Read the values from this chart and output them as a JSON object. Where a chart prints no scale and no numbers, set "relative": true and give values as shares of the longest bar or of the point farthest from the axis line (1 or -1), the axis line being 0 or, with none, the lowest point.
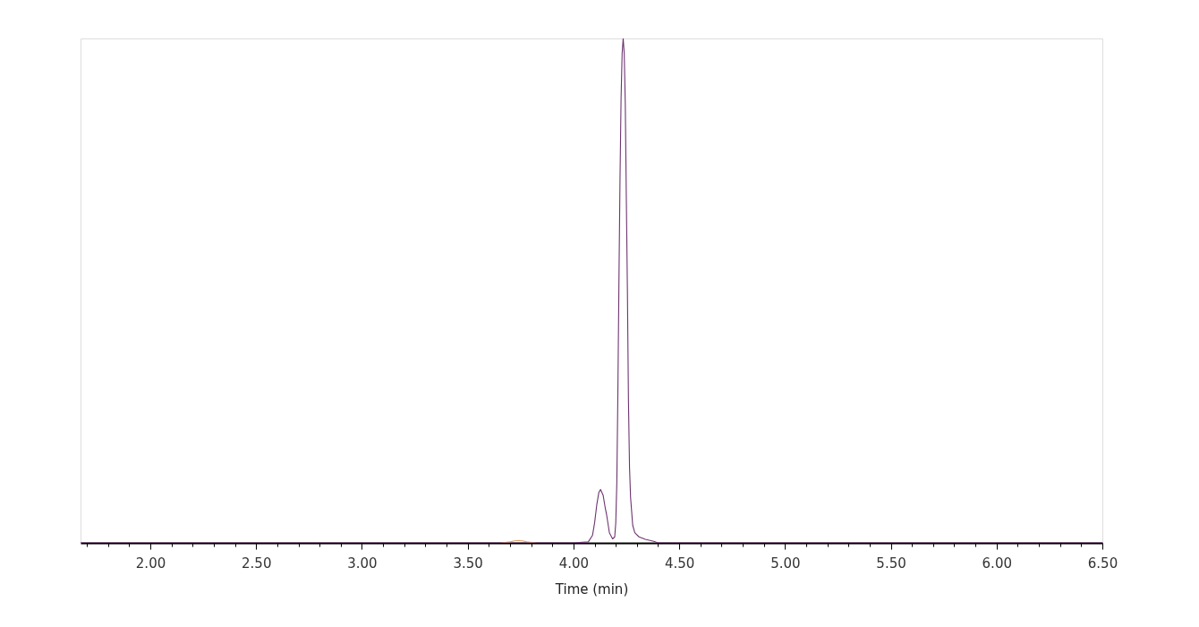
{
  "chart_data": {
    "type": "line",
    "relative": true,
    "xlabel": "Time (min)",
    "xlim": [
      1.67,
      6.5
    ],
    "xticks": [
      {
        "value": 1.7,
        "label": null
      },
      {
        "value": 1.8,
        "label": null
      },
      {
        "value": 1.9,
        "label": null
      },
      {
        "value": 2,
        "label": "2.00"
      },
      {
        "value": 2.1,
        "label": null
      },
      {
        "value": 2.2,
        "label": null
      },
      {
        "value": 2.3,
        "label": null
      },
      {
        "value": 2.4,
        "label": null
      },
      {
        "value": 2.5,
        "label": "2.50"
      },
      {
        "value": 2.6,
        "label": null
      },
      {
        "value": 2.7,
        "label": null
      },
      {
        "value": 2.8,
        "label": null
      },
      {
        "value": 2.9,
        "label": null
      },
      {
        "value": 3,
        "label": "3.00"
      },
      {
        "value": 3.1,
        "label": null
      },
      {
        "value": 3.2,
        "label": null
      },
      {
        "value": 3.3,
        "label": null
      },
      {
        "value": 3.4,
        "label": null
      },
      {
        "value": 3.5,
        "label": "3.50"
      },
      {
        "value": 3.6,
        "label": null
      },
      {
        "value": 3.7,
        "label": null
      },
      {
        "value": 3.8,
        "label": null
      },
      {
        "value": 3.9,
        "label": null
      },
      {
        "value": 4,
        "label": "4.00"
      },
      {
        "value": 4.1,
        "label": null
      },
      {
        "value": 4.2,
        "label": null
      },
      {
        "value": 4.3,
        "label": null
      },
      {
        "value": 4.4,
        "label": null
      },
      {
        "value": 4.5,
        "label": "4.50"
      },
      {
        "value": 4.6,
        "label": null
      },
      {
        "value": 4.7,
        "label": null
      },
      {
        "value": 4.8,
        "label": null
      },
      {
        "value": 4.9,
        "label": null
      },
      {
        "value": 5,
        "label": "5.00"
      },
      {
        "value": 5.1,
        "label": null
      },
      {
        "value": 5.2,
        "label": null
      },
      {
        "value": 5.3,
        "label": null
      },
      {
        "value": 5.4,
        "label": null
      },
      {
        "value": 5.5,
        "label": "5.50"
      },
      {
        "value": 5.6,
        "label": null
      },
      {
        "value": 5.7,
        "label": null
      },
      {
        "value": 5.8,
        "label": null
      },
      {
        "value": 5.9,
        "label": null
      },
      {
        "value": 6,
        "label": "6.00"
      },
      {
        "value": 6.1,
        "label": null
      },
      {
        "value": 6.2,
        "label": null
      },
      {
        "value": 6.3,
        "label": null
      },
      {
        "value": 6.4,
        "label": null
      },
      {
        "value": 6.5,
        "label": "6.50"
      }
    ],
    "grid": false,
    "marker": "none",
    "line_style": "solid",
    "series": [
      {
        "color": "#e0a060",
        "x": [
          3.66,
          3.7,
          3.72,
          3.74,
          3.76,
          3.78,
          3.82
        ],
        "values": [
          0,
          0.002,
          0.004,
          0.005,
          0.004,
          0.002,
          0
        ]
      },
      {
        "color": "#6e3470",
        "x": [
          1.67,
          2,
          3,
          4,
          4.07,
          4.09,
          4.1,
          4.11,
          4.12,
          4.128,
          4.14,
          4.15,
          4.157,
          4.17,
          4.185,
          4.195,
          4.2,
          4.205,
          4.21,
          4.215,
          4.22,
          4.225,
          4.23,
          4.235,
          4.24,
          4.245,
          4.25,
          4.255,
          4.26,
          4.265,
          4.27,
          4.28,
          4.29,
          4.31,
          4.34,
          4.38,
          4.4,
          5,
          6,
          6.5
        ],
        "values": [
          0,
          0,
          0,
          0,
          0.002,
          0.015,
          0.04,
          0.075,
          0.1,
          0.106,
          0.095,
          0.07,
          0.055,
          0.02,
          0.008,
          0.012,
          0.04,
          0.12,
          0.3,
          0.52,
          0.72,
          0.88,
          0.97,
          1,
          0.97,
          0.87,
          0.68,
          0.5,
          0.28,
          0.15,
          0.09,
          0.035,
          0.02,
          0.012,
          0.007,
          0.003,
          0,
          0,
          0,
          0
        ]
      }
    ]
  }
}
